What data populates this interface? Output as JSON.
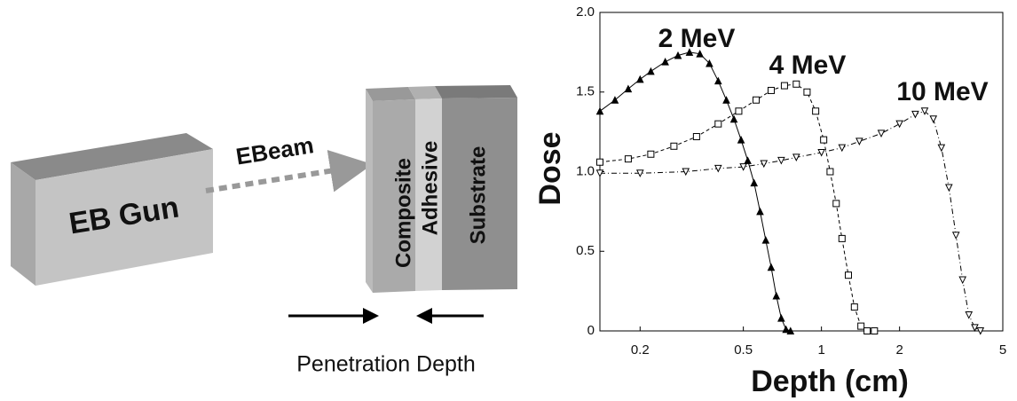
{
  "diagram": {
    "gun": "EB Gun",
    "beam": "EBeam",
    "layers": [
      "Composite",
      "Adhesive",
      "Substrate"
    ],
    "caption": "Penetration Depth"
  },
  "chart_data": {
    "type": "line",
    "xlabel": "Depth (cm)",
    "ylabel": "Dose",
    "xlog": true,
    "xlim": [
      0.14,
      5
    ],
    "xticks": [
      0.2,
      0.5,
      1,
      2,
      5
    ],
    "ylim": [
      0,
      2
    ],
    "yticks": [
      0,
      0.5,
      {
        "value": 1,
        "label": "1.0"
      },
      1.5,
      {
        "value": 2,
        "label": "2.0"
      }
    ],
    "series": [
      {
        "name": "2 MeV",
        "color": "#000000",
        "marker": "triangle",
        "line_style": "solid",
        "x": [
          0.14,
          0.16,
          0.18,
          0.2,
          0.22,
          0.25,
          0.28,
          0.31,
          0.34,
          0.37,
          0.4,
          0.43,
          0.46,
          0.49,
          0.52,
          0.55,
          0.58,
          0.61,
          0.64,
          0.67,
          0.7,
          0.73,
          0.76
        ],
        "values": [
          1.38,
          1.45,
          1.52,
          1.58,
          1.63,
          1.69,
          1.73,
          1.75,
          1.74,
          1.68,
          1.57,
          1.45,
          1.33,
          1.2,
          1.07,
          0.93,
          0.75,
          0.57,
          0.4,
          0.22,
          0.08,
          0.01,
          0
        ]
      },
      {
        "name": "4 MeV",
        "color": "#000000",
        "marker": "square",
        "line_style": "dashed",
        "x": [
          0.14,
          0.18,
          0.22,
          0.27,
          0.33,
          0.4,
          0.48,
          0.56,
          0.64,
          0.72,
          0.8,
          0.88,
          0.95,
          1.02,
          1.08,
          1.14,
          1.2,
          1.27,
          1.34,
          1.42,
          1.5,
          1.6
        ],
        "values": [
          1.06,
          1.08,
          1.11,
          1.16,
          1.22,
          1.3,
          1.38,
          1.45,
          1.51,
          1.54,
          1.55,
          1.5,
          1.38,
          1.2,
          1,
          0.8,
          0.58,
          0.35,
          0.15,
          0.03,
          0,
          0
        ]
      },
      {
        "name": "10 MeV",
        "color": "#000000",
        "marker": "triangle-down",
        "line_style": "dashdot",
        "x": [
          0.14,
          0.2,
          0.3,
          0.4,
          0.5,
          0.6,
          0.7,
          0.8,
          1,
          1.2,
          1.4,
          1.7,
          2,
          2.3,
          2.5,
          2.7,
          2.9,
          3.1,
          3.3,
          3.5,
          3.7,
          3.9,
          4.1
        ],
        "values": [
          0.99,
          0.99,
          1,
          1.02,
          1.03,
          1.05,
          1.07,
          1.09,
          1.12,
          1.15,
          1.19,
          1.24,
          1.3,
          1.36,
          1.38,
          1.33,
          1.15,
          0.9,
          0.6,
          0.32,
          0.1,
          0.02,
          0
        ]
      }
    ]
  }
}
